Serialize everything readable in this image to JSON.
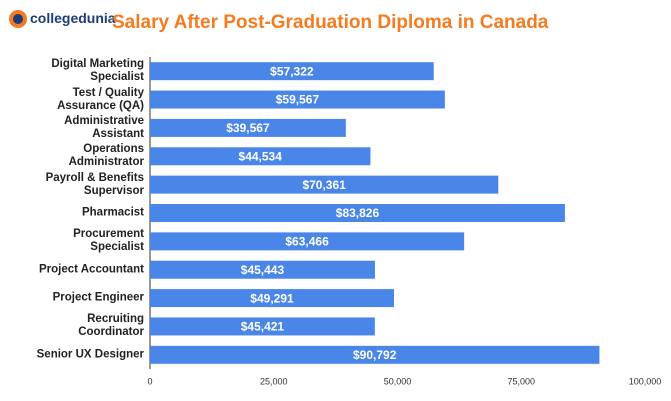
{
  "logo": "collegedunia",
  "chart_data": {
    "type": "bar",
    "orientation": "horizontal",
    "title": "Salary After Post-Graduation Diploma in Canada",
    "categories": [
      "Digital Marketing\nSpecialist",
      "Test / Quality\nAssurance (QA)",
      "Administrative\nAssistant",
      "Operations\nAdministrator",
      "Payroll & Benefits\nSupervisor",
      "Pharmacist",
      "Procurement\nSpecialist",
      "Project Accountant",
      "Project Engineer",
      "Recruiting\nCoordinator",
      "Senior UX Designer"
    ],
    "values": [
      57322,
      59567,
      39567,
      44534,
      70361,
      83826,
      63466,
      45443,
      49291,
      45421,
      90792
    ],
    "value_labels": [
      "$57,322",
      "$59,567",
      "$39,567",
      "$44,534",
      "$70,361",
      "$83,826",
      "$63,466",
      "$45,443",
      "$49,291",
      "$45,421",
      "$90,792"
    ],
    "color": "#4a86e8",
    "xlim": [
      0,
      100000
    ],
    "xticks": [
      0,
      {
        "value": 25000,
        "label": "25,000"
      },
      {
        "value": 50000,
        "label": "50,000"
      },
      {
        "value": 75000,
        "label": "75,000"
      },
      {
        "value": 100000,
        "label": "100,000"
      }
    ],
    "grid": false
  }
}
